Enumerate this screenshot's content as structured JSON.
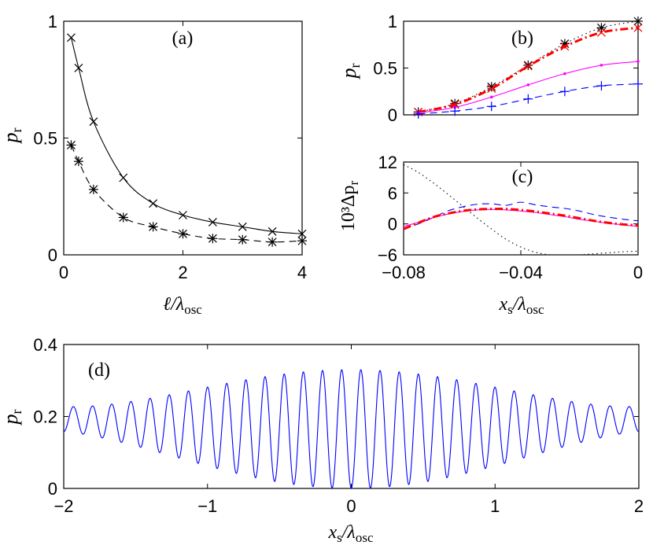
{
  "chart_data": [
    {
      "id": "a",
      "type": "line",
      "panel_label": "(a)",
      "xlabel_main": "ℓ/λ",
      "xlabel_sub": "osc",
      "ylabel_main": "p",
      "ylabel_sub": "r",
      "xlim": [
        0,
        4
      ],
      "ylim": [
        0,
        1
      ],
      "xticks": [
        0,
        2,
        4
      ],
      "yticks": [
        0,
        0.5,
        1
      ],
      "xtick_labels": [
        "0",
        "2",
        "4"
      ],
      "ytick_labels": [
        "0",
        "0.5",
        "1"
      ],
      "series": [
        {
          "name": "solid",
          "style": "solid",
          "color": "#000000",
          "marker": "x",
          "x": [
            0.125,
            0.25,
            0.5,
            1.0,
            1.5,
            2.0,
            2.5,
            3.0,
            3.5,
            4.0
          ],
          "y": [
            0.93,
            0.8,
            0.57,
            0.33,
            0.22,
            0.17,
            0.14,
            0.12,
            0.1,
            0.09
          ]
        },
        {
          "name": "dashed",
          "style": "dashed",
          "color": "#000000",
          "marker": "*",
          "x": [
            0.125,
            0.25,
            0.5,
            1.0,
            1.5,
            2.0,
            2.5,
            3.0,
            3.5,
            4.0
          ],
          "y": [
            0.47,
            0.4,
            0.28,
            0.16,
            0.12,
            0.09,
            0.07,
            0.065,
            0.055,
            0.06
          ]
        }
      ]
    },
    {
      "id": "b",
      "type": "line",
      "panel_label": "(b)",
      "ylabel_main": "p",
      "ylabel_sub": "r",
      "xlim": [
        -0.08,
        0
      ],
      "ylim": [
        0,
        1
      ],
      "yticks": [
        0,
        0.5,
        1
      ],
      "ytick_labels": [
        "0",
        "0.5",
        "1"
      ],
      "series": [
        {
          "name": "dotted",
          "style": "dotted",
          "color": "#000000",
          "marker": "*",
          "x": [
            -0.075,
            -0.0625,
            -0.05,
            -0.0375,
            -0.025,
            -0.0125,
            0
          ],
          "y": [
            0.03,
            0.12,
            0.3,
            0.53,
            0.76,
            0.93,
            1.0
          ]
        },
        {
          "name": "red-dashdot",
          "style": "dashdot",
          "color": "#ff0000",
          "marker": "x",
          "x": [
            -0.075,
            -0.0625,
            -0.05,
            -0.0375,
            -0.025,
            -0.0125,
            0
          ],
          "y": [
            0.03,
            0.11,
            0.28,
            0.52,
            0.73,
            0.88,
            0.93
          ]
        },
        {
          "name": "magenta-solid",
          "style": "solid",
          "color": "#ff00ff",
          "marker": ".",
          "x": [
            -0.075,
            -0.0625,
            -0.05,
            -0.0375,
            -0.025,
            -0.0125,
            0
          ],
          "y": [
            0.02,
            0.08,
            0.19,
            0.32,
            0.44,
            0.53,
            0.57
          ]
        },
        {
          "name": "blue-dashed",
          "style": "dashed",
          "color": "#0000ff",
          "marker": "+",
          "x": [
            -0.075,
            -0.0625,
            -0.05,
            -0.0375,
            -0.025,
            -0.0125,
            0
          ],
          "y": [
            0.01,
            0.04,
            0.09,
            0.17,
            0.25,
            0.31,
            0.33
          ]
        }
      ]
    },
    {
      "id": "c",
      "type": "line",
      "panel_label": "(c)",
      "xlabel_main": "x",
      "xlabel_sub": "s",
      "xlabel_tail": "/λ",
      "xlabel_tail_sub": "osc",
      "ylabel_text": "10³Δp",
      "ylabel_sub": "r",
      "xlim": [
        -0.08,
        0
      ],
      "ylim": [
        -6,
        12
      ],
      "xticks": [
        -0.08,
        -0.04,
        0
      ],
      "xtick_labels": [
        "−0.08",
        "−0.04",
        "0"
      ],
      "yticks": [
        -6,
        0,
        6,
        12
      ],
      "ytick_labels": [
        "−6",
        "0",
        "6",
        "12"
      ],
      "series": [
        {
          "name": "dotted",
          "style": "dotted",
          "color": "#000000",
          "x": [
            -0.08,
            -0.075,
            -0.07,
            -0.065,
            -0.06,
            -0.055,
            -0.05,
            -0.045,
            -0.04,
            -0.035,
            -0.03,
            -0.025,
            -0.02,
            -0.015,
            -0.01,
            -0.005,
            0
          ],
          "y": [
            11.5,
            10.0,
            8.0,
            5.8,
            3.5,
            1.2,
            -1.0,
            -3.0,
            -4.5,
            -5.5,
            -6.0,
            -6.0,
            -6.0,
            -5.8,
            -5.6,
            -5.4,
            -5.3
          ]
        },
        {
          "name": "blue-dashed",
          "style": "dashed",
          "color": "#0000ff",
          "x": [
            -0.08,
            -0.075,
            -0.07,
            -0.065,
            -0.06,
            -0.055,
            -0.05,
            -0.045,
            -0.04,
            -0.035,
            -0.03,
            -0.025,
            -0.02,
            -0.015,
            -0.01,
            -0.005,
            0
          ],
          "y": [
            -0.8,
            0.0,
            1.2,
            2.5,
            3.3,
            3.8,
            3.9,
            3.6,
            4.2,
            3.7,
            3.3,
            3.0,
            2.5,
            1.8,
            1.3,
            0.9,
            0.6
          ]
        },
        {
          "name": "magenta-solid",
          "style": "solid",
          "color": "#ff00ff",
          "x": [
            -0.08,
            -0.075,
            -0.07,
            -0.065,
            -0.06,
            -0.055,
            -0.05,
            -0.045,
            -0.04,
            -0.035,
            -0.03,
            -0.025,
            -0.02,
            -0.015,
            -0.01,
            -0.005,
            0
          ],
          "y": [
            -0.5,
            0.3,
            1.2,
            1.9,
            2.4,
            2.7,
            2.8,
            2.7,
            2.5,
            2.2,
            1.8,
            1.4,
            0.9,
            0.5,
            0.1,
            -0.2,
            -0.5
          ]
        },
        {
          "name": "red-dashdot",
          "style": "dashdot",
          "color": "#ff0000",
          "x": [
            -0.08,
            -0.075,
            -0.07,
            -0.065,
            -0.06,
            -0.055,
            -0.05,
            -0.045,
            -0.04,
            -0.035,
            -0.03,
            -0.025,
            -0.02,
            -0.015,
            -0.01,
            -0.005,
            0
          ],
          "y": [
            -1.0,
            0.2,
            1.3,
            2.0,
            2.5,
            2.8,
            2.9,
            2.9,
            2.7,
            2.4,
            2.0,
            1.6,
            1.1,
            0.6,
            0.2,
            -0.1,
            -0.3
          ]
        }
      ]
    },
    {
      "id": "d",
      "type": "line",
      "panel_label": "(d)",
      "xlabel_main": "x",
      "xlabel_sub": "s",
      "xlabel_tail": "/λ",
      "xlabel_tail_sub": "osc",
      "ylabel_main": "p",
      "ylabel_sub": "r",
      "xlim": [
        -2,
        2
      ],
      "ylim": [
        0,
        0.4
      ],
      "xticks": [
        -2,
        -1,
        0,
        1,
        2
      ],
      "xtick_labels": [
        "−2",
        "−1",
        "0",
        "1",
        "2"
      ],
      "yticks": [
        0,
        0.2,
        0.4
      ],
      "ytick_labels": [
        "0",
        "0.2",
        "0.4"
      ],
      "series": [
        {
          "name": "oscillation",
          "style": "solid",
          "color": "#0000ff",
          "model": "damped-cosine",
          "offset": 0.165,
          "peak_amplitude": 0.165,
          "edge_amplitude": 0.035,
          "period": 0.1333,
          "phase_center": 0
        }
      ]
    }
  ]
}
